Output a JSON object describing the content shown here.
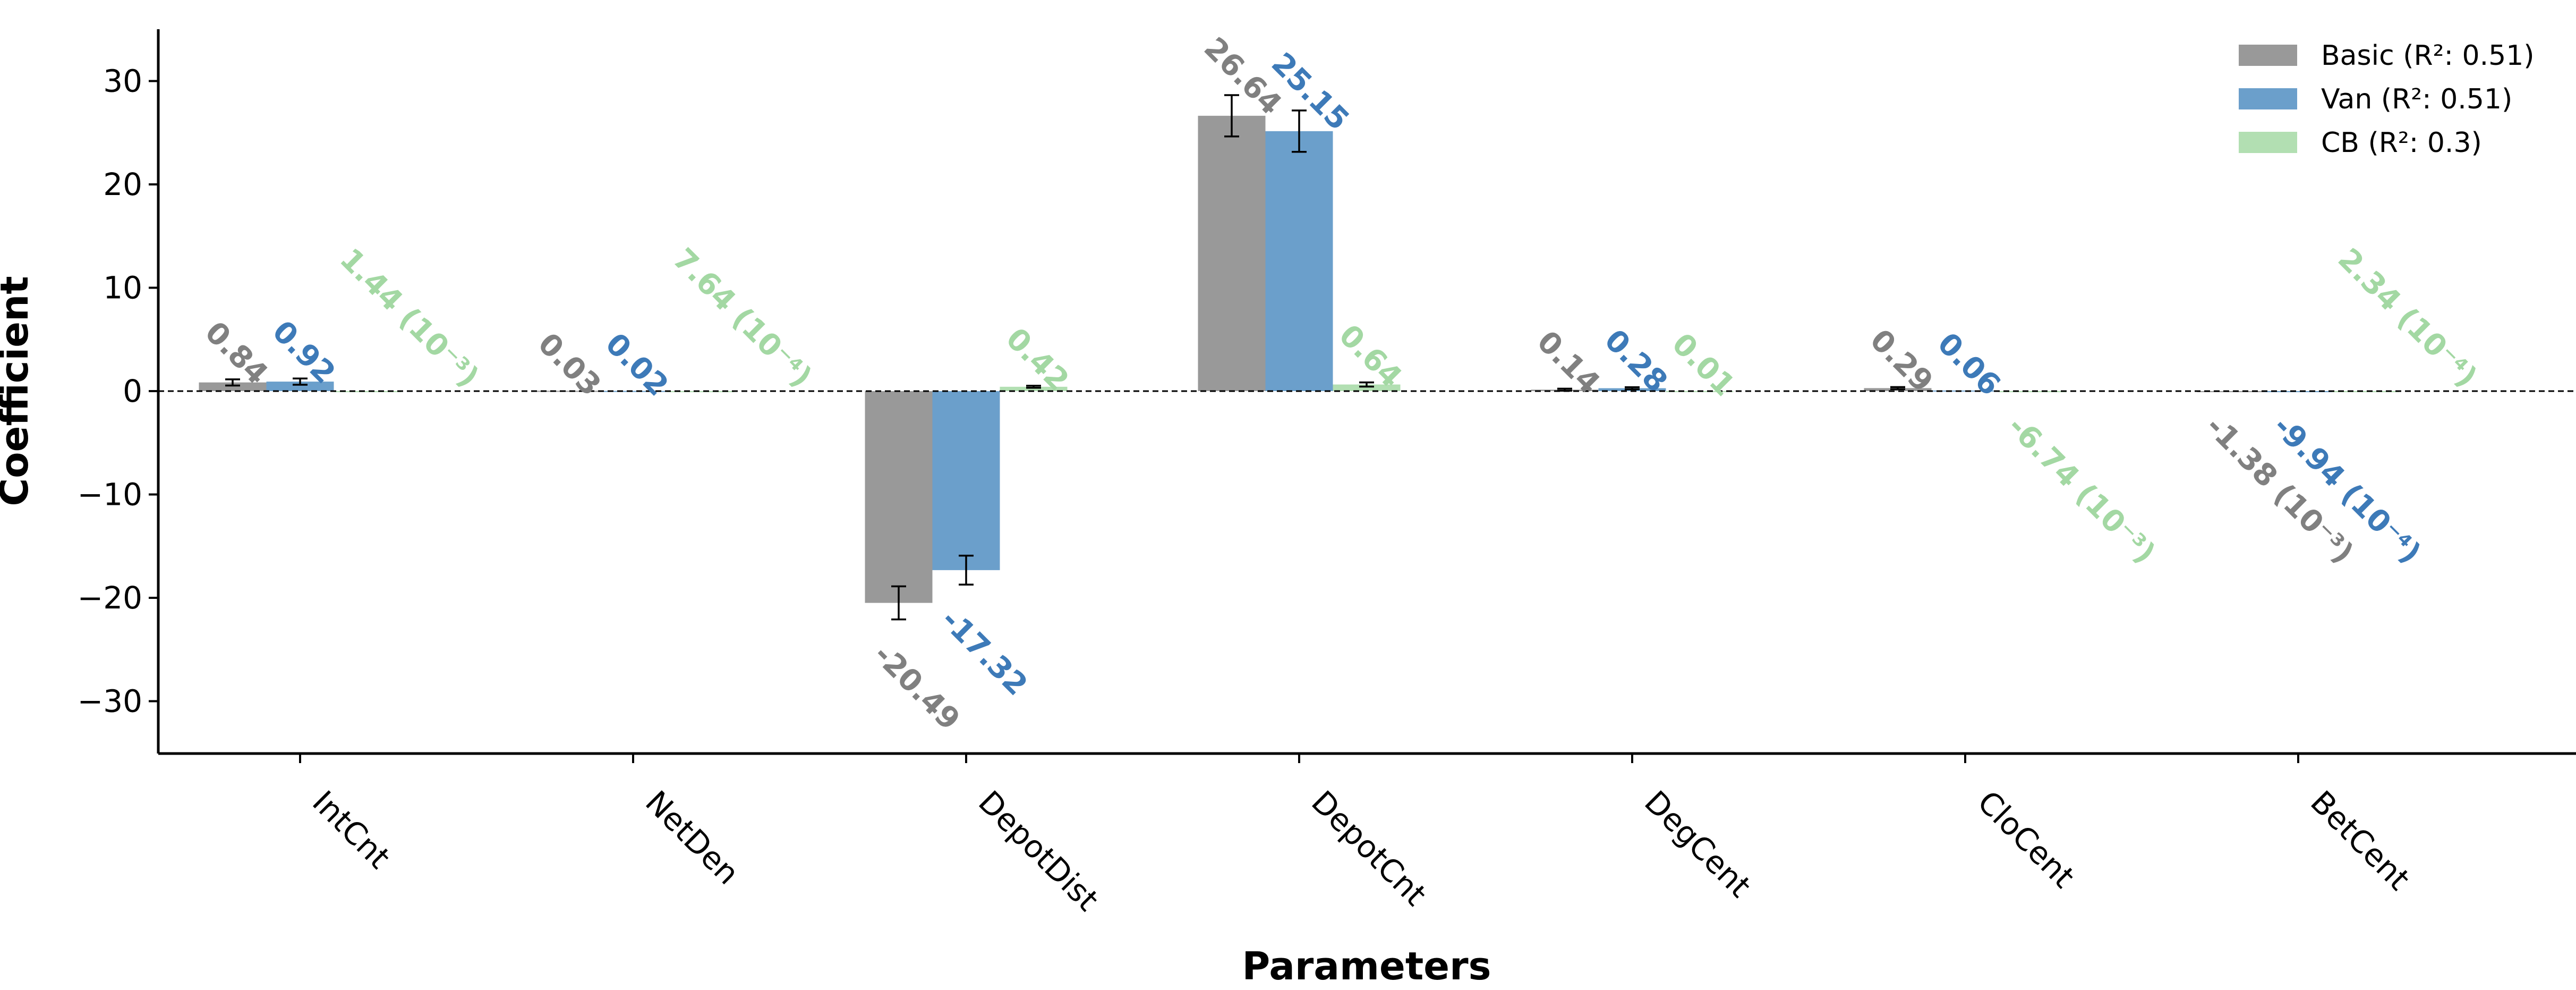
{
  "chart_data": {
    "type": "bar",
    "xlabel": "Parameters",
    "ylabel": "Coefficient",
    "categories": [
      "IntCnt",
      "NetDen",
      "DepotDist",
      "DepotCnt",
      "DegCent",
      "CloCent",
      "BetCent"
    ],
    "ylim": [
      -35,
      35
    ],
    "yticks": [
      -30,
      -20,
      -10,
      0,
      10,
      20,
      30
    ],
    "ytick_labels": [
      "−30",
      "−20",
      "−10",
      "0",
      "10",
      "20",
      "30"
    ],
    "zero_line": "dashed",
    "grid": false,
    "legend_position": "top-right",
    "series": [
      {
        "name": "Basic (R²: 0.51)",
        "color": "#999999",
        "label_color": "#808080",
        "values": [
          0.84,
          0.03,
          -20.49,
          26.64,
          0.14,
          0.29,
          -0.00138
        ],
        "errors": [
          0.3,
          0.0,
          1.6,
          2.0,
          0.1,
          0.1,
          0.0
        ],
        "labels": [
          "0.84",
          "0.03",
          "-20.49",
          "26.64",
          "0.14",
          "0.29",
          "-1.38 (10⁻³)"
        ]
      },
      {
        "name": "Van (R²: 0.51)",
        "color": "#6b9fcb",
        "label_color": "#3d7ab8",
        "values": [
          0.92,
          0.02,
          -17.32,
          25.15,
          0.28,
          0.06,
          -0.000994
        ],
        "errors": [
          0.3,
          0.0,
          1.4,
          2.0,
          0.1,
          0.0,
          0.0
        ],
        "labels": [
          "0.92",
          "0.02",
          "-17.32",
          "25.15",
          "0.28",
          "0.06",
          "-9.94 (10⁻⁴)"
        ]
      },
      {
        "name": "CB (R²: 0.3)",
        "color": "#b2dfb2",
        "label_color": "#a3d8a3",
        "values": [
          0.00144,
          0.000764,
          0.42,
          0.64,
          0.01,
          -0.00674,
          0.000234
        ],
        "errors": [
          0.0,
          0.0,
          0.1,
          0.2,
          0.0,
          0.0,
          0.0
        ],
        "labels": [
          "1.44 (10⁻³)",
          "7.64 (10⁻⁴)",
          "0.42",
          "0.64",
          "0.01",
          "-6.74 (10⁻³)",
          "2.34 (10⁻⁴)"
        ]
      }
    ]
  }
}
